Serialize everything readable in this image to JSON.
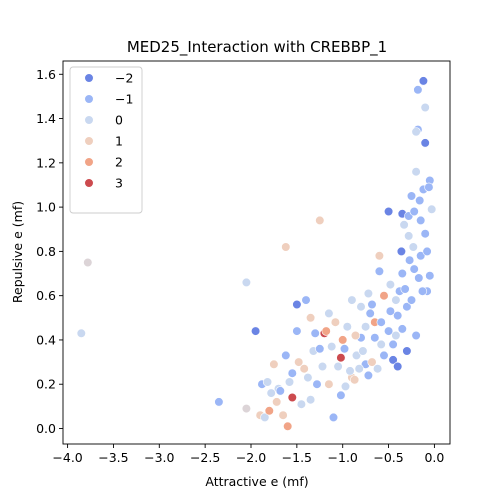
{
  "chart_data": {
    "type": "scatter",
    "title": "MED25_Interaction with CREBBP_1",
    "xlabel": "Attractive e (mf)",
    "ylabel": "Repulsive e (mf)",
    "xlim": [
      -4.05,
      0.17
    ],
    "ylim": [
      -0.07,
      1.66
    ],
    "xticks": [
      -4.0,
      -3.5,
      -3.0,
      -2.5,
      -2.0,
      -1.5,
      -1.0,
      -0.5,
      0.0
    ],
    "xtick_labels": [
      "−4.0",
      "−3.5",
      "−3.0",
      "−2.5",
      "−2.0",
      "−1.5",
      "−1.0",
      "−0.5",
      "0.0"
    ],
    "yticks": [
      0.0,
      0.2,
      0.4,
      0.6,
      0.8,
      1.0,
      1.2,
      1.4,
      1.6
    ],
    "ytick_labels": [
      "0.0",
      "0.2",
      "0.4",
      "0.6",
      "0.8",
      "1.0",
      "1.2",
      "1.4",
      "1.6"
    ],
    "grid": false,
    "legend": {
      "placement": "top-left",
      "entries": [
        {
          "label": "−2",
          "hue": -2,
          "color": "#6a84e4"
        },
        {
          "label": "−1",
          "hue": -1,
          "color": "#9bb6f6"
        },
        {
          "label": "0",
          "hue": 0,
          "color": "#c9d8f0"
        },
        {
          "label": "1",
          "hue": 1,
          "color": "#efcfbe"
        },
        {
          "label": "2",
          "hue": 2,
          "color": "#f1a487"
        },
        {
          "label": "3",
          "hue": 3,
          "color": "#cc4a4e"
        }
      ]
    },
    "points": [
      [
        -3.85,
        0.43,
        0
      ],
      [
        -3.78,
        0.75,
        0.5
      ],
      [
        -2.35,
        0.12,
        -1
      ],
      [
        -2.05,
        0.66,
        0
      ],
      [
        -1.95,
        0.44,
        -2
      ],
      [
        -2.05,
        0.09,
        0.5
      ],
      [
        -1.9,
        0.06,
        1
      ],
      [
        -1.85,
        0.05,
        0
      ],
      [
        -1.8,
        0.08,
        2
      ],
      [
        -1.75,
        0.29,
        1
      ],
      [
        -1.7,
        0.18,
        0
      ],
      [
        -1.62,
        0.82,
        1
      ],
      [
        -1.6,
        0.01,
        2
      ],
      [
        -1.55,
        0.14,
        3
      ],
      [
        -1.5,
        0.56,
        -2
      ],
      [
        -1.45,
        0.11,
        0
      ],
      [
        -1.4,
        0.58,
        -1
      ],
      [
        -1.35,
        0.5,
        1
      ],
      [
        -1.32,
        0.35,
        0
      ],
      [
        -1.25,
        0.94,
        1
      ],
      [
        -1.2,
        0.43,
        3
      ],
      [
        -1.15,
        0.2,
        1
      ],
      [
        -1.1,
        0.05,
        -1
      ],
      [
        -1.02,
        0.32,
        3
      ],
      [
        -1.0,
        0.4,
        2
      ],
      [
        -0.95,
        0.46,
        0
      ],
      [
        -0.9,
        0.23,
        1
      ],
      [
        -0.85,
        0.33,
        0
      ],
      [
        -0.8,
        0.55,
        0
      ],
      [
        -0.75,
        0.29,
        -1
      ],
      [
        -0.72,
        0.61,
        0
      ],
      [
        -0.68,
        0.3,
        1
      ],
      [
        -0.65,
        0.48,
        2
      ],
      [
        -0.6,
        0.78,
        1
      ],
      [
        -0.58,
        0.38,
        0
      ],
      [
        -0.55,
        0.6,
        2
      ],
      [
        -0.5,
        0.44,
        -1
      ],
      [
        -0.48,
        0.65,
        0
      ],
      [
        -0.45,
        0.31,
        -2
      ],
      [
        -0.42,
        0.42,
        0
      ],
      [
        -0.4,
        0.51,
        -1
      ],
      [
        -0.38,
        0.62,
        -1
      ],
      [
        -0.35,
        0.7,
        -1
      ],
      [
        -0.33,
        0.92,
        0
      ],
      [
        -0.3,
        0.55,
        -1
      ],
      [
        -0.28,
        0.87,
        0
      ],
      [
        -0.25,
        1.05,
        -1
      ],
      [
        -0.22,
        0.72,
        -1
      ],
      [
        -0.2,
        1.16,
        0
      ],
      [
        -0.18,
        1.35,
        -1
      ],
      [
        -0.15,
        0.94,
        -1
      ],
      [
        -0.12,
        1.57,
        -2
      ],
      [
        -0.1,
        1.29,
        -2
      ],
      [
        -0.08,
        0.62,
        -1
      ],
      [
        -0.05,
        1.12,
        -1
      ],
      [
        -0.03,
        0.99,
        0
      ],
      [
        -0.18,
        1.53,
        -1
      ],
      [
        -0.5,
        0.98,
        -2
      ],
      [
        -0.35,
        0.97,
        -2
      ],
      [
        -0.6,
        0.71,
        -1
      ],
      [
        -0.7,
        0.52,
        -1
      ],
      [
        -0.8,
        0.41,
        -1
      ],
      [
        -0.9,
        0.58,
        0
      ],
      [
        -1.05,
        0.28,
        0
      ],
      [
        -1.15,
        0.52,
        0
      ],
      [
        -1.28,
        0.2,
        -1
      ],
      [
        -1.38,
        0.23,
        0
      ],
      [
        -1.48,
        0.3,
        1
      ],
      [
        -1.58,
        0.21,
        0
      ],
      [
        -1.68,
        0.17,
        -1
      ],
      [
        -1.78,
        0.16,
        0
      ],
      [
        -1.88,
        0.2,
        -1
      ],
      [
        -1.5,
        0.44,
        -1
      ],
      [
        -1.25,
        0.36,
        -1
      ],
      [
        -1.12,
        0.37,
        0
      ],
      [
        -0.98,
        0.36,
        -1
      ],
      [
        -0.86,
        0.42,
        1
      ],
      [
        -0.78,
        0.35,
        0
      ],
      [
        -0.65,
        0.41,
        -1
      ],
      [
        -0.55,
        0.33,
        -1
      ],
      [
        -0.45,
        0.38,
        -1
      ],
      [
        -0.35,
        0.45,
        -1
      ],
      [
        -0.25,
        0.58,
        -1
      ],
      [
        -0.15,
        0.78,
        -1
      ],
      [
        -0.1,
        0.88,
        -1
      ],
      [
        -0.05,
        0.69,
        -1
      ],
      [
        -0.4,
        0.28,
        -2
      ],
      [
        -0.3,
        0.35,
        -2
      ],
      [
        -0.2,
        0.42,
        -1
      ],
      [
        -0.62,
        0.27,
        0
      ],
      [
        -0.72,
        0.24,
        -1
      ],
      [
        -0.82,
        0.27,
        0
      ],
      [
        -0.92,
        0.26,
        0
      ],
      [
        -1.02,
        0.15,
        -1
      ],
      [
        -1.08,
        0.48,
        1
      ],
      [
        -1.18,
        0.44,
        2
      ],
      [
        -1.3,
        0.43,
        -1
      ],
      [
        -1.42,
        0.27,
        1
      ],
      [
        -1.62,
        0.33,
        -1
      ],
      [
        -1.72,
        0.12,
        1
      ],
      [
        -1.82,
        0.21,
        0
      ],
      [
        -1.65,
        0.06,
        1
      ],
      [
        -1.55,
        0.25,
        -1
      ],
      [
        -1.35,
        0.13,
        0
      ],
      [
        -1.22,
        0.28,
        0
      ],
      [
        -0.97,
        0.19,
        0
      ],
      [
        -0.87,
        0.22,
        1
      ],
      [
        -0.75,
        0.46,
        0
      ],
      [
        -0.68,
        0.56,
        -1
      ],
      [
        -0.58,
        0.48,
        -1
      ],
      [
        -0.48,
        0.53,
        -1
      ],
      [
        -0.42,
        0.58,
        0
      ],
      [
        -0.32,
        0.63,
        -1
      ],
      [
        -0.27,
        0.76,
        -1
      ],
      [
        -0.23,
        0.82,
        0
      ],
      [
        -0.17,
        0.68,
        -1
      ],
      [
        -0.13,
        0.62,
        -1
      ],
      [
        -0.08,
        0.8,
        -1
      ],
      [
        -0.36,
        0.8,
        -2
      ],
      [
        -0.28,
        0.96,
        -1
      ],
      [
        -0.22,
        0.98,
        -1
      ],
      [
        -0.16,
        1.03,
        -1
      ],
      [
        -0.12,
        1.08,
        -1
      ],
      [
        -0.06,
        1.09,
        -1
      ],
      [
        -0.2,
        1.34,
        0
      ],
      [
        -0.1,
        1.45,
        0
      ]
    ]
  }
}
